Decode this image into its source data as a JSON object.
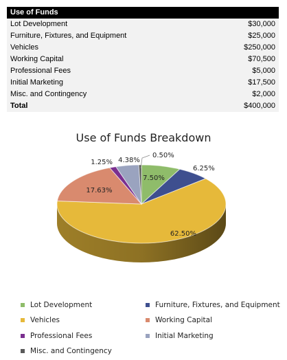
{
  "table": {
    "header": "Use of Funds",
    "rows": [
      {
        "label": "Lot Development",
        "amount": "$30,000"
      },
      {
        "label": "Furniture, Fixtures, and Equipment",
        "amount": "$25,000"
      },
      {
        "label": "Vehicles",
        "amount": "$250,000"
      },
      {
        "label": "Working Capital",
        "amount": "$70,500"
      },
      {
        "label": "Professional Fees",
        "amount": "$5,000"
      },
      {
        "label": "Initial Marketing",
        "amount": "$17,500"
      },
      {
        "label": "Misc. and Contingency",
        "amount": "$2,000"
      }
    ],
    "total": {
      "label": "Total",
      "amount": "$400,000"
    }
  },
  "chart_data": {
    "type": "pie",
    "title": "Use of Funds Breakdown",
    "legend_position": "bottom",
    "categories": [
      "Lot Development",
      "Furniture, Fixtures, and Equipment",
      "Vehicles",
      "Working Capital",
      "Professional Fees",
      "Initial Marketing",
      "Misc. and Contingency"
    ],
    "values": [
      7.5,
      6.25,
      62.5,
      17.63,
      1.25,
      4.38,
      0.5
    ],
    "value_labels": [
      "7.50%",
      "6.25%",
      "62.50%",
      "17.63%",
      "1.25%",
      "4.38%",
      "0.50%"
    ],
    "colors": [
      "#8fbc6a",
      "#3e4f8f",
      "#e6b93a",
      "#d98a6e",
      "#7a2f8f",
      "#9aa3bf",
      "#5a5a5a"
    ],
    "three_d": true
  }
}
